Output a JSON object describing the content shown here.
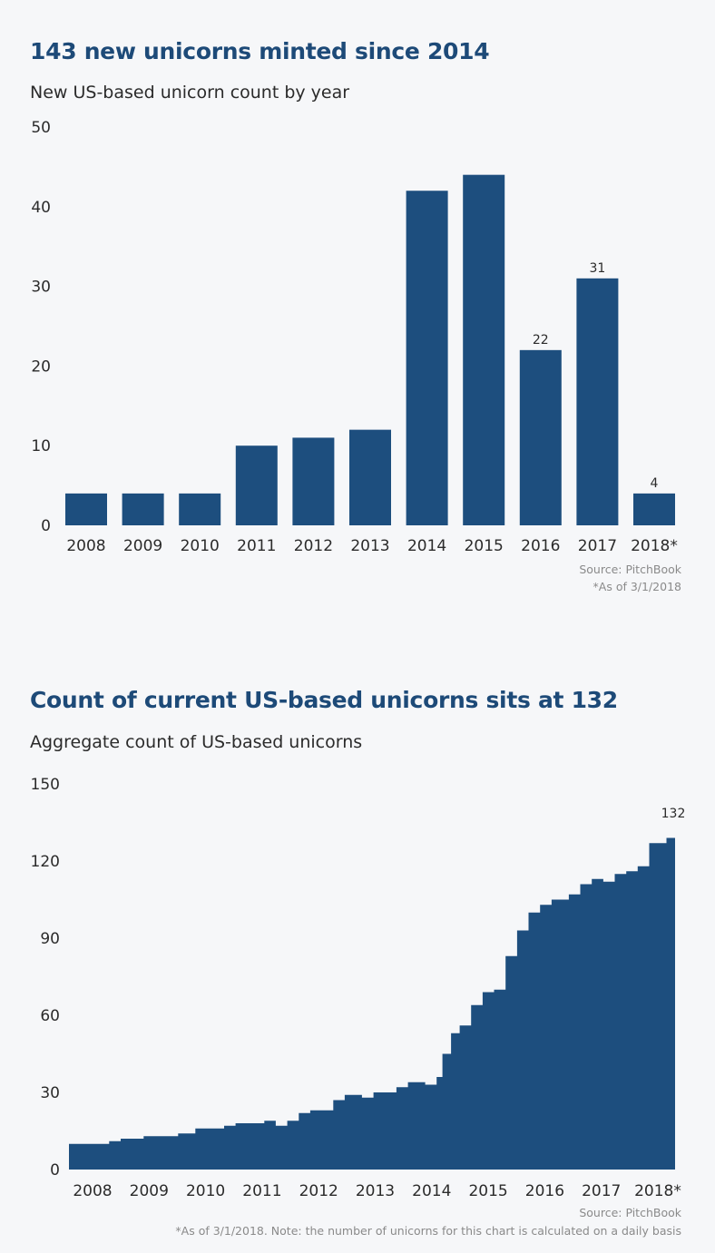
{
  "charts": [
    {
      "title": "143 new unicorns minted since 2014",
      "subtitle": "New US-based unicorn count by year",
      "source": "Source: PitchBook",
      "footnote": "*As of 3/1/2018"
    },
    {
      "title": "Count of current US-based unicorns sits at 132",
      "subtitle": "Aggregate count of US-based unicorns",
      "source": "Source: PitchBook",
      "footnote": "*As of 3/1/2018. Note: the number of unicorns for this chart is calculated on a daily basis"
    }
  ],
  "chart_data": [
    {
      "type": "bar",
      "title": "143 new unicorns minted since 2014",
      "subtitle": "New US-based unicorn count by year",
      "categories": [
        "2008",
        "2009",
        "2010",
        "2011",
        "2012",
        "2013",
        "2014",
        "2015",
        "2016",
        "2017",
        "2018*"
      ],
      "values": [
        4,
        4,
        4,
        10,
        11,
        12,
        42,
        44,
        22,
        31,
        4
      ],
      "data_labels": {
        "8": "22",
        "9": "31",
        "10": "4"
      },
      "yticks": [
        "0",
        "10",
        "20",
        "30",
        "40",
        "50"
      ],
      "ylim": [
        0,
        50
      ],
      "grid": false,
      "color": "#1d4e7e"
    },
    {
      "type": "area",
      "title": "Count of current US-based unicorns sits at 132",
      "subtitle": "Aggregate count of US-based unicorns",
      "x": [
        2007.6,
        2008.1,
        2008.3,
        2008.5,
        2008.6,
        2008.9,
        2009.3,
        2009.5,
        2009.8,
        2010.0,
        2010.3,
        2010.5,
        2010.8,
        2011.0,
        2011.2,
        2011.4,
        2011.6,
        2011.8,
        2012.0,
        2012.2,
        2012.4,
        2012.7,
        2012.9,
        2013.1,
        2013.3,
        2013.5,
        2013.8,
        2014.0,
        2014.1,
        2014.25,
        2014.4,
        2014.6,
        2014.8,
        2015.0,
        2015.2,
        2015.4,
        2015.6,
        2015.8,
        2016.0,
        2016.3,
        2016.5,
        2016.7,
        2016.9,
        2017.1,
        2017.3,
        2017.5,
        2017.7,
        2017.9,
        2018.0,
        2018.15
      ],
      "y": [
        10,
        10,
        11,
        12,
        12,
        13,
        13,
        14,
        16,
        16,
        17,
        18,
        18,
        19,
        17,
        19,
        22,
        23,
        23,
        27,
        29,
        28,
        30,
        30,
        32,
        34,
        33,
        36,
        45,
        53,
        56,
        64,
        69,
        70,
        83,
        93,
        100,
        103,
        105,
        107,
        111,
        113,
        112,
        115,
        116,
        118,
        127,
        127,
        129,
        132
      ],
      "end_label": "132",
      "xticks": [
        "2008",
        "2009",
        "2010",
        "2011",
        "2012",
        "2013",
        "2014",
        "2015",
        "2016",
        "2017",
        "2018*"
      ],
      "yticks": [
        "0",
        "30",
        "60",
        "90",
        "120",
        "150"
      ],
      "xlim": [
        2007.6,
        2018.15
      ],
      "ylim": [
        0,
        150
      ],
      "grid": false,
      "color": "#1d4e7e"
    }
  ]
}
